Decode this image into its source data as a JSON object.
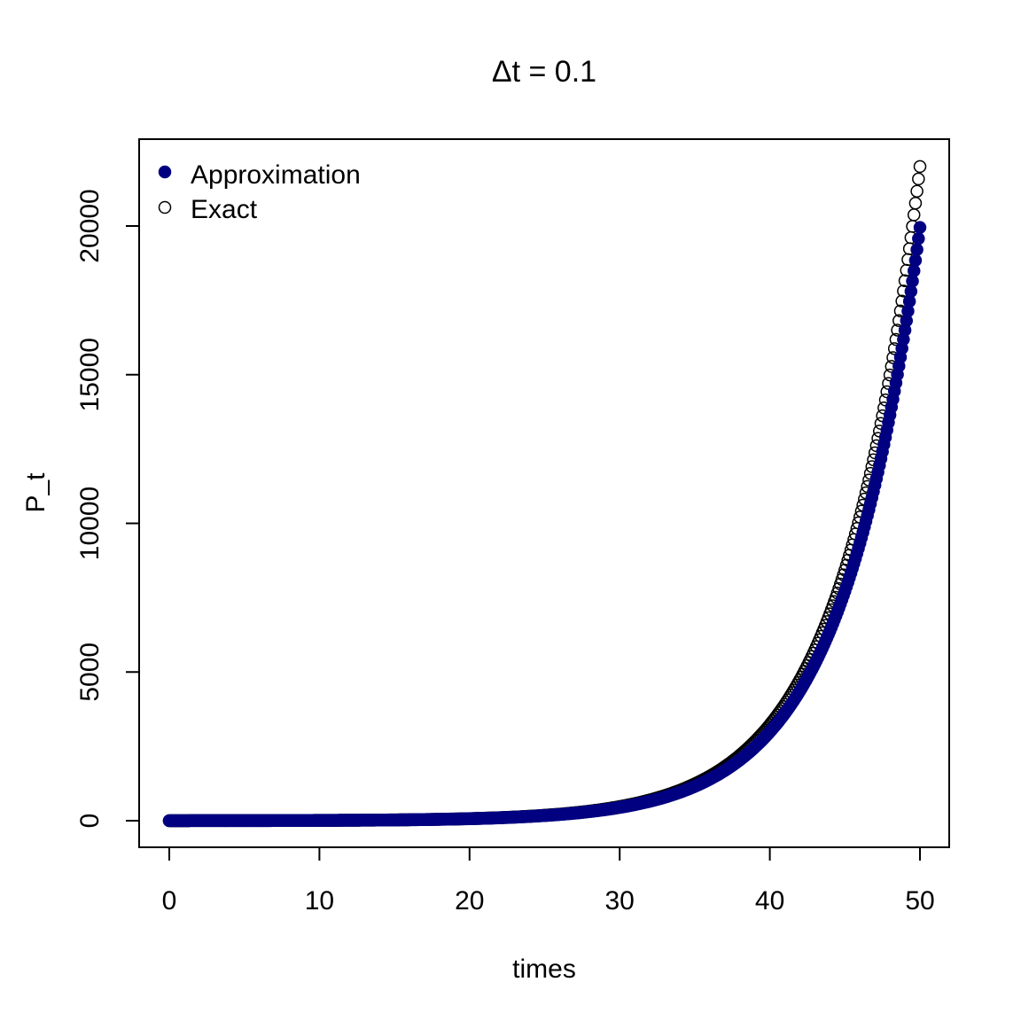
{
  "chart_data": {
    "type": "scatter",
    "title": "Δt = 0.1",
    "xlabel": "times",
    "ylabel": "P_t",
    "xlim": [
      0,
      50
    ],
    "ylim": [
      0,
      22000
    ],
    "xticks": [
      0,
      10,
      20,
      30,
      40,
      50
    ],
    "xtick_labels": [
      "0",
      "10",
      "20",
      "30",
      "40",
      "50"
    ],
    "yticks": [
      0,
      5000,
      10000,
      15000,
      20000
    ],
    "ytick_labels": [
      "0",
      "5000",
      "10000",
      "15000",
      "20000"
    ],
    "grid": false,
    "legend": {
      "position": "top-left",
      "entries": [
        {
          "label": "Approximation",
          "marker": "filled-circle",
          "color": "#000080"
        },
        {
          "label": "Exact",
          "marker": "open-circle",
          "color": "#000000"
        }
      ]
    },
    "series": [
      {
        "name": "Approximation",
        "marker": "filled-circle",
        "color": "#000080",
        "x_start": 0,
        "x_end": 50,
        "x_step": 0.1,
        "y0": 1.5,
        "y_end": 19950
      },
      {
        "name": "Exact",
        "marker": "open-circle",
        "color": "#000000",
        "x_start": 0,
        "x_end": 50,
        "x_step": 0.1,
        "y0": 1.5,
        "y_end": 22000
      }
    ]
  }
}
